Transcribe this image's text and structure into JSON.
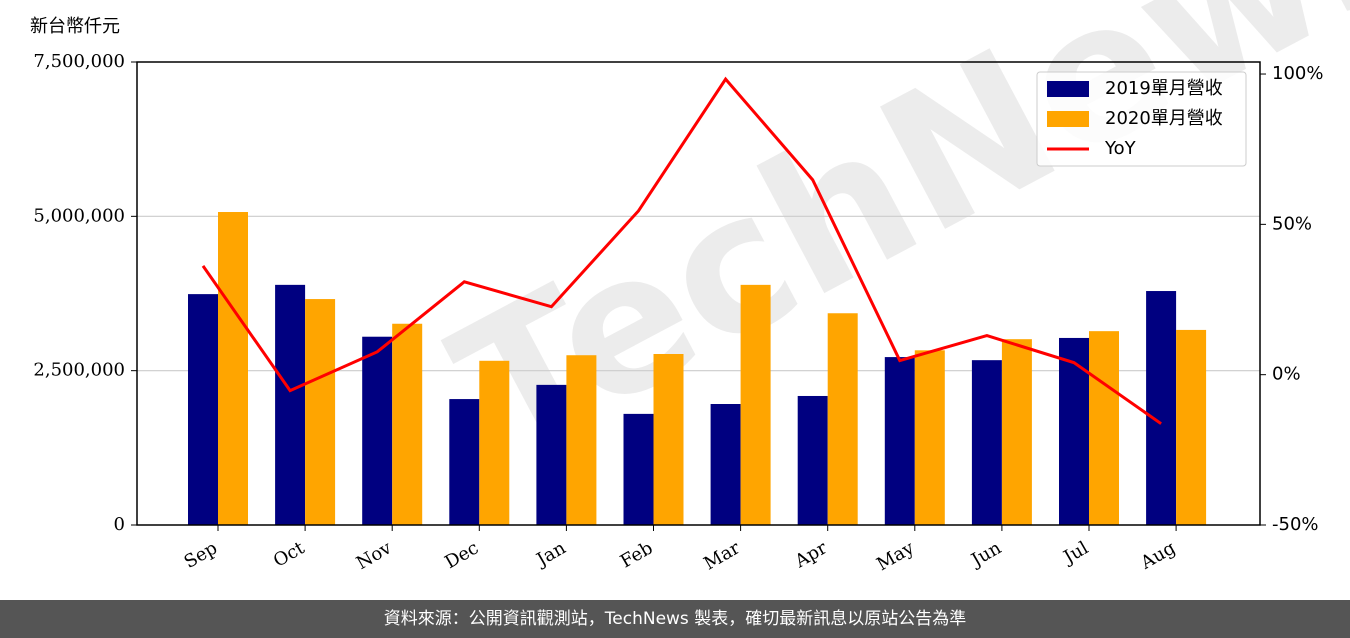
{
  "chart_data": {
    "type": "bar",
    "y_label": "新台幣仟元",
    "categories": [
      "Sep",
      "Oct",
      "Nov",
      "Dec",
      "Jan",
      "Feb",
      "Mar",
      "Apr",
      "May",
      "Jun",
      "Jul",
      "Aug"
    ],
    "series": [
      {
        "name": "2019單月營收",
        "color": "#000080",
        "values": [
          3740000,
          3890000,
          3050000,
          2040000,
          2270000,
          1800000,
          1960000,
          2090000,
          2720000,
          2670000,
          3030000,
          3790000
        ]
      },
      {
        "name": "2020單月營收",
        "color": "#ffa500",
        "values": [
          5070000,
          3660000,
          3260000,
          2660000,
          2750000,
          2770000,
          3890000,
          3430000,
          2830000,
          3010000,
          3140000,
          3160000
        ]
      },
      {
        "name": "YoY",
        "color": "#ff0000",
        "type": "line",
        "axis": "y2",
        "values": [
          36.2,
          -5.3,
          7.6,
          30.9,
          22.6,
          54.5,
          98.3,
          64.8,
          4.7,
          13.0,
          4.0,
          -16.3
        ]
      }
    ],
    "ylim": [
      0,
      7500000
    ],
    "yticks": [
      0,
      {
        "value": 2500000,
        "label": "2,500,000"
      },
      {
        "value": 5000000,
        "label": "5,000,000"
      },
      {
        "value": 7500000,
        "label": "7,500,000"
      }
    ],
    "y2lim": [
      -50,
      104
    ],
    "y2ticks": [
      {
        "value": -50,
        "label": "-50%"
      },
      {
        "value": 0,
        "label": "0%"
      },
      {
        "value": 50,
        "label": "50%"
      },
      {
        "value": 100,
        "label": "100%"
      }
    ],
    "grid": true,
    "legend": "upper right"
  },
  "watermark": "TechNews",
  "footer": "資料來源：公開資訊觀測站，TechNews 製表，確切最新訊息以原站公告為準"
}
